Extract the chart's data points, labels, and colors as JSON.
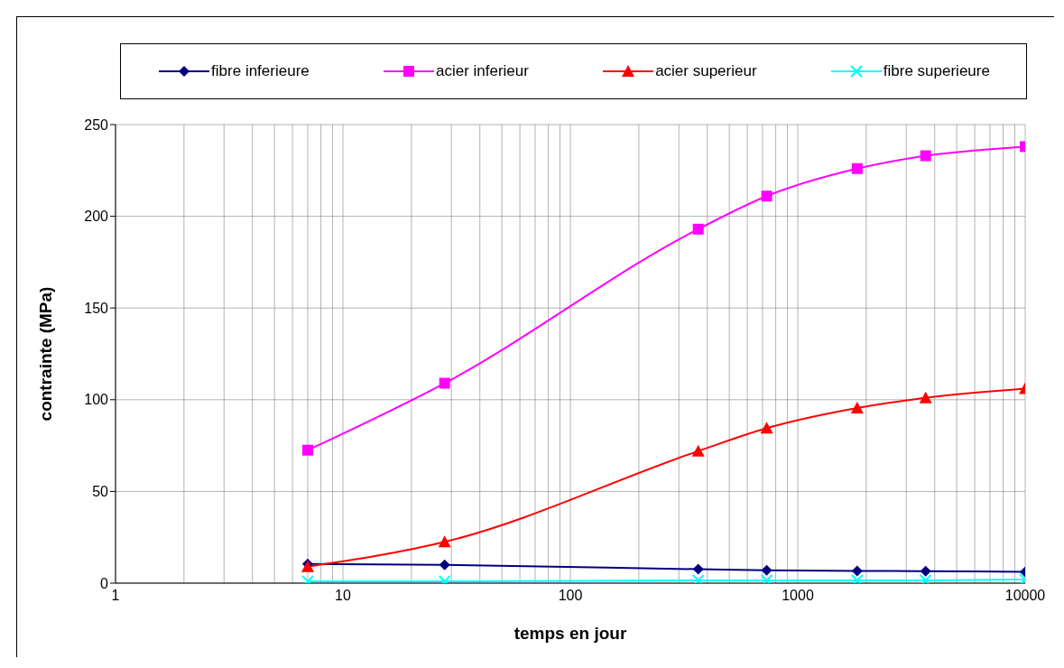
{
  "chart_data": {
    "type": "line",
    "xlabel": "temps en jour",
    "ylabel": "contrainte (MPa)",
    "log": "x",
    "x": [
      7,
      28,
      365,
      730,
      1825,
      3650,
      10000
    ],
    "series": [
      {
        "name": "fibre inferieure",
        "color": "#000080",
        "marker": "diamond",
        "values": [
          10.5,
          10,
          7.6,
          7,
          6.7,
          6.5,
          6.2
        ]
      },
      {
        "name": "acier inferieur",
        "color": "#ff00ff",
        "marker": "square",
        "values": [
          72.5,
          109,
          193,
          211,
          226,
          233,
          238
        ]
      },
      {
        "name": "acier superieur",
        "color": "#ff0000",
        "marker": "triangle",
        "values": [
          9,
          22.5,
          72,
          84.5,
          95.5,
          101,
          106
        ]
      },
      {
        "name": "fibre superieure",
        "color": "#00ffff",
        "marker": "cross",
        "values": [
          1,
          1,
          1.5,
          1.5,
          1.5,
          1.5,
          2
        ]
      }
    ],
    "xlim": [
      1,
      10000
    ],
    "xticks": [
      1,
      {
        "value": 2,
        "label": null
      },
      {
        "value": 3,
        "label": null
      },
      {
        "value": 4,
        "label": null
      },
      {
        "value": 5,
        "label": null
      },
      {
        "value": 6,
        "label": null
      },
      {
        "value": 7,
        "label": null
      },
      {
        "value": 8,
        "label": null
      },
      {
        "value": 9,
        "label": null
      },
      10,
      {
        "value": 20,
        "label": null
      },
      {
        "value": 30,
        "label": null
      },
      {
        "value": 40,
        "label": null
      },
      {
        "value": 50,
        "label": null
      },
      {
        "value": 60,
        "label": null
      },
      {
        "value": 70,
        "label": null
      },
      {
        "value": 80,
        "label": null
      },
      {
        "value": 90,
        "label": null
      },
      100,
      {
        "value": 200,
        "label": null
      },
      {
        "value": 300,
        "label": null
      },
      {
        "value": 400,
        "label": null
      },
      {
        "value": 500,
        "label": null
      },
      {
        "value": 600,
        "label": null
      },
      {
        "value": 700,
        "label": null
      },
      {
        "value": 800,
        "label": null
      },
      {
        "value": 900,
        "label": null
      },
      1000,
      {
        "value": 2000,
        "label": null
      },
      {
        "value": 3000,
        "label": null
      },
      {
        "value": 4000,
        "label": null
      },
      {
        "value": 5000,
        "label": null
      },
      {
        "value": 6000,
        "label": null
      },
      {
        "value": 7000,
        "label": null
      },
      {
        "value": 8000,
        "label": null
      },
      {
        "value": 9000,
        "label": null
      },
      10000
    ],
    "ylim": [
      0,
      250
    ],
    "yticks": [
      0,
      50,
      100,
      150,
      200,
      250
    ],
    "grid": true,
    "legend": "top",
    "line_style": "solid"
  }
}
